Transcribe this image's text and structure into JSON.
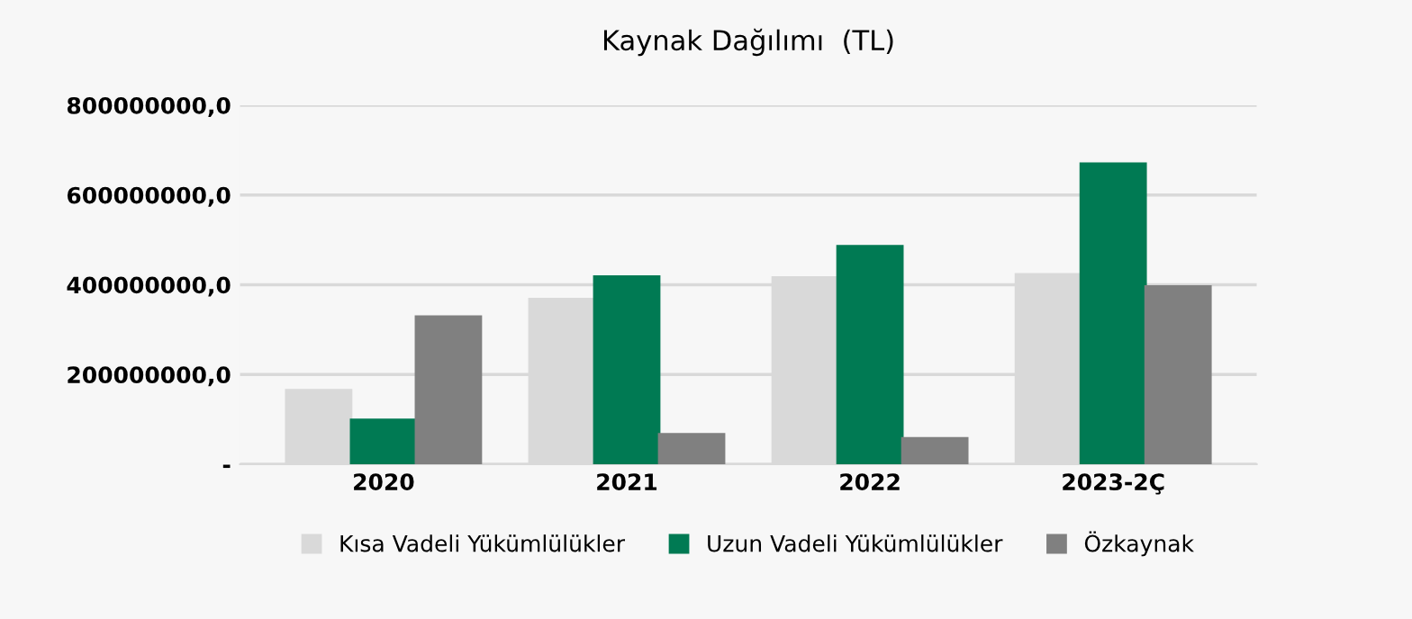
{
  "chart_data": {
    "type": "bar",
    "title": "Kaynak Dağılımı  (TL)",
    "categories": [
      "2020",
      "2021",
      "2022",
      "2023-2Ç"
    ],
    "series": [
      {
        "name": "Kısa Vadeli Yükümlülükler",
        "color": "#d9d9d9",
        "values": [
          165000000,
          368000000,
          416000000,
          423000000
        ]
      },
      {
        "name": "Uzun Vadeli Yükümlülükler",
        "color": "#007a53",
        "values": [
          99000000,
          418000000,
          486000000,
          670000000
        ]
      },
      {
        "name": "Özkaynak",
        "color": "#808080",
        "values": [
          329000000,
          67000000,
          58000000,
          396000000
        ]
      }
    ],
    "ylim": [
      0,
      800000000
    ],
    "yticks": [
      {
        "value": 0,
        "label": "-"
      },
      {
        "value": 200000000,
        "label": "200000000,0"
      },
      {
        "value": 400000000,
        "label": "400000000,0"
      },
      {
        "value": 600000000,
        "label": "600000000,0"
      },
      {
        "value": 800000000,
        "label": "800000000,0"
      }
    ],
    "grid": "y",
    "legend": "bottom"
  }
}
